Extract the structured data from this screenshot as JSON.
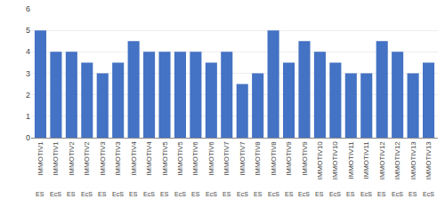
{
  "chart_data": {
    "type": "bar",
    "categories": [
      [
        "IMMOTIV1",
        "ES"
      ],
      [
        "IMMOTIV1",
        "EcS"
      ],
      [
        "IMMOTIV2",
        "ES"
      ],
      [
        "IMMOTIV2",
        "EcS"
      ],
      [
        "IMMOTIV3",
        "ES"
      ],
      [
        "IMMOTIV3",
        "EcS"
      ],
      [
        "IMMOTIV4",
        "ES"
      ],
      [
        "IMMOTIV4",
        "EcS"
      ],
      [
        "IMMOTIV5",
        "ES"
      ],
      [
        "IMMOTIV5",
        "EcS"
      ],
      [
        "IMMOTIV6",
        "ES"
      ],
      [
        "IMMOTIV6",
        "EcS"
      ],
      [
        "IMMOTIV7",
        "ES"
      ],
      [
        "IMMOTIV7",
        "EcS"
      ],
      [
        "IMMOTIV8",
        "ES"
      ],
      [
        "IMMOTIV8",
        "EcS"
      ],
      [
        "IMMOTIV9",
        "ES"
      ],
      [
        "IMMOTIV9",
        "EcS"
      ],
      [
        "IMMOTIV10",
        "ES"
      ],
      [
        "IMMOTIV10",
        "EcS"
      ],
      [
        "IMMOTIV11",
        "ES"
      ],
      [
        "IMMOTIV11",
        "EcS"
      ],
      [
        "IMMOTIV12",
        "ES"
      ],
      [
        "IMMOTIV12",
        "EcS"
      ],
      [
        "IMMOTIV13",
        "ES"
      ],
      [
        "IMMOTIV13",
        "EcS"
      ]
    ],
    "values": [
      5.0,
      4.0,
      4.0,
      3.5,
      3.0,
      3.5,
      4.5,
      4.0,
      4.0,
      4.0,
      4.0,
      3.5,
      4.0,
      2.5,
      3.0,
      5.0,
      3.5,
      4.5,
      4.0,
      3.5,
      3.0,
      3.0,
      4.5,
      4.0,
      3.0,
      3.5
    ],
    "color": "#4472C4",
    "ylim": [
      0,
      6
    ],
    "yticks": [
      0,
      1,
      2,
      3,
      4,
      5,
      6
    ],
    "grid": true
  }
}
